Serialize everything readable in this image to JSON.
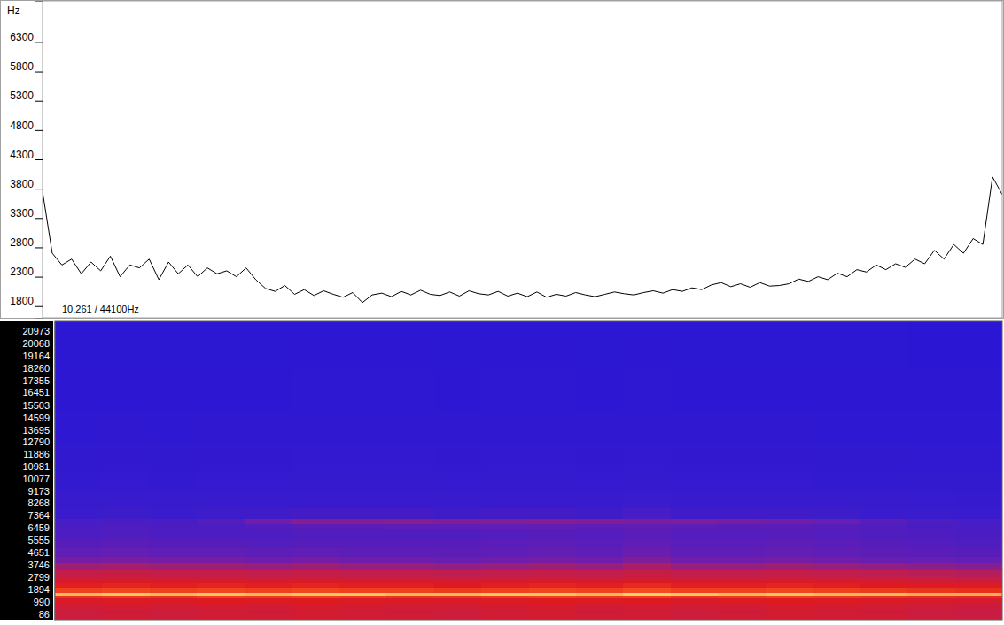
{
  "chart_data": [
    {
      "type": "line",
      "ylabel": "Hz",
      "annotation": "10.261 / 44100Hz",
      "x": [
        0,
        1,
        2,
        3,
        4,
        5,
        6,
        7,
        8,
        9,
        10,
        11,
        12,
        13,
        14,
        15,
        16,
        17,
        18,
        19,
        20,
        21,
        22,
        23,
        24,
        25,
        26,
        27,
        28,
        29,
        30,
        31,
        32,
        33,
        34,
        35,
        36,
        37,
        38,
        39,
        40,
        41,
        42,
        43,
        44,
        45,
        46,
        47,
        48,
        49,
        50,
        51,
        52,
        53,
        54,
        55,
        56,
        57,
        58,
        59,
        60,
        61,
        62,
        63,
        64,
        65,
        66,
        67,
        68,
        69,
        70,
        71,
        72,
        73,
        74,
        75,
        76,
        77,
        78,
        79,
        80,
        81,
        82,
        83,
        84,
        85,
        86,
        87,
        88,
        89,
        90,
        91,
        92,
        93,
        94,
        95,
        96,
        97,
        98,
        99
      ],
      "values": [
        3750,
        2700,
        2500,
        2600,
        2350,
        2550,
        2400,
        2650,
        2300,
        2500,
        2450,
        2600,
        2250,
        2550,
        2350,
        2500,
        2300,
        2450,
        2350,
        2400,
        2300,
        2450,
        2250,
        2100,
        2050,
        2150,
        2000,
        2080,
        1980,
        2060,
        2000,
        1950,
        2030,
        1860,
        1990,
        2020,
        1960,
        2050,
        1990,
        2070,
        2000,
        1980,
        2040,
        1970,
        2060,
        2010,
        1990,
        2050,
        1970,
        2020,
        1960,
        2040,
        1950,
        2000,
        1970,
        2030,
        1990,
        1960,
        2000,
        2040,
        2010,
        1990,
        2030,
        2060,
        2020,
        2080,
        2050,
        2110,
        2080,
        2160,
        2200,
        2130,
        2180,
        2120,
        2200,
        2140,
        2150,
        2180,
        2260,
        2220,
        2300,
        2250,
        2360,
        2300,
        2420,
        2380,
        2500,
        2420,
        2520,
        2460,
        2600,
        2520,
        2750,
        2600,
        2850,
        2700,
        2950,
        2850,
        4000,
        3700
      ],
      "color": "#000000",
      "xlim": [
        0,
        99
      ],
      "ylim": [
        1600,
        7000
      ],
      "yticks": [
        1800,
        2300,
        2800,
        3300,
        3800,
        4300,
        4800,
        5300,
        5800,
        6300
      ],
      "tick_labels": "y",
      "grid": false
    },
    {
      "type": "heatmap",
      "x_bins": [
        0,
        5,
        10,
        15,
        20,
        25,
        30,
        35,
        40,
        45,
        50,
        55,
        60,
        65,
        70,
        75,
        80,
        85,
        90,
        95,
        100
      ],
      "y_bins": [
        0,
        400,
        800,
        1200,
        1600,
        1800,
        2000,
        2400,
        2800,
        3200,
        3700,
        4200,
        4700,
        5300,
        6000,
        6700,
        7100,
        7500,
        8300,
        9500,
        11000,
        13000,
        15500,
        18500,
        22050
      ],
      "cells": [
        [
          66,
          68,
          67,
          69,
          68,
          70,
          69,
          68,
          67,
          69,
          70,
          68,
          69,
          67,
          68,
          70,
          69,
          68,
          66,
          65
        ],
        [
          64,
          66,
          65,
          67,
          66,
          68,
          67,
          66,
          65,
          67,
          68,
          66,
          67,
          65,
          66,
          68,
          67,
          66,
          64,
          63
        ],
        [
          68,
          70,
          69,
          70,
          69,
          71,
          70,
          69,
          68,
          70,
          71,
          69,
          70,
          68,
          69,
          71,
          70,
          69,
          67,
          66
        ],
        [
          72,
          73,
          72,
          74,
          73,
          74,
          73,
          72,
          72,
          73,
          74,
          73,
          74,
          72,
          73,
          74,
          73,
          72,
          71,
          70
        ],
        [
          80,
          81,
          80,
          82,
          81,
          82,
          81,
          80,
          80,
          81,
          82,
          81,
          82,
          80,
          81,
          82,
          81,
          80,
          79,
          78
        ],
        [
          96,
          97,
          96,
          97,
          96,
          97,
          97,
          96,
          96,
          97,
          97,
          96,
          98,
          97,
          96,
          97,
          96,
          96,
          95,
          95
        ],
        [
          82,
          83,
          82,
          83,
          82,
          83,
          82,
          82,
          81,
          82,
          83,
          82,
          84,
          82,
          82,
          83,
          82,
          81,
          80,
          79
        ],
        [
          76,
          77,
          76,
          77,
          76,
          77,
          76,
          76,
          75,
          76,
          77,
          76,
          78,
          76,
          76,
          77,
          76,
          75,
          74,
          73
        ],
        [
          70,
          71,
          70,
          70,
          69,
          70,
          69,
          69,
          68,
          69,
          70,
          69,
          71,
          69,
          69,
          70,
          69,
          68,
          67,
          66
        ],
        [
          62,
          63,
          62,
          62,
          61,
          62,
          61,
          61,
          60,
          61,
          62,
          61,
          63,
          61,
          61,
          62,
          61,
          60,
          59,
          58
        ],
        [
          54,
          55,
          54,
          54,
          53,
          54,
          53,
          53,
          52,
          53,
          54,
          53,
          56,
          53,
          53,
          54,
          53,
          52,
          51,
          50
        ],
        [
          47,
          48,
          47,
          47,
          46,
          47,
          46,
          46,
          45,
          46,
          47,
          46,
          49,
          46,
          46,
          47,
          46,
          45,
          44,
          43
        ],
        [
          42,
          43,
          42,
          42,
          41,
          42,
          41,
          41,
          41,
          42,
          43,
          42,
          45,
          42,
          42,
          43,
          42,
          41,
          40,
          39
        ],
        [
          39,
          40,
          39,
          39,
          38,
          39,
          39,
          39,
          39,
          40,
          41,
          40,
          42,
          40,
          40,
          41,
          40,
          39,
          38,
          37
        ],
        [
          36,
          37,
          36,
          36,
          36,
          37,
          37,
          37,
          37,
          38,
          39,
          38,
          40,
          38,
          38,
          39,
          38,
          37,
          36,
          35
        ],
        [
          35,
          36,
          35,
          36,
          38,
          40,
          40,
          41,
          41,
          42,
          42,
          41,
          42,
          41,
          40,
          40,
          39,
          37,
          35,
          34
        ],
        [
          34,
          35,
          35,
          38,
          46,
          50,
          50,
          50,
          49,
          49,
          50,
          49,
          48,
          48,
          47,
          46,
          44,
          40,
          36,
          34
        ],
        [
          30,
          31,
          30,
          31,
          32,
          33,
          33,
          33,
          32,
          33,
          33,
          32,
          34,
          32,
          32,
          32,
          31,
          30,
          29,
          28
        ],
        [
          25,
          26,
          25,
          26,
          26,
          27,
          27,
          27,
          26,
          27,
          27,
          26,
          28,
          26,
          26,
          26,
          25,
          25,
          24,
          23
        ],
        [
          19,
          20,
          19,
          20,
          20,
          21,
          21,
          21,
          20,
          21,
          21,
          20,
          22,
          20,
          20,
          20,
          19,
          19,
          18,
          18
        ],
        [
          14,
          15,
          14,
          15,
          15,
          16,
          16,
          16,
          15,
          16,
          16,
          15,
          17,
          15,
          15,
          15,
          14,
          14,
          13,
          13
        ],
        [
          10,
          11,
          10,
          11,
          11,
          12,
          12,
          12,
          11,
          12,
          12,
          11,
          12,
          11,
          11,
          11,
          10,
          10,
          9,
          9
        ],
        [
          6,
          7,
          6,
          7,
          7,
          8,
          8,
          8,
          7,
          8,
          8,
          7,
          8,
          7,
          7,
          7,
          6,
          6,
          5,
          5
        ],
        [
          3,
          4,
          3,
          4,
          4,
          5,
          5,
          5,
          4,
          5,
          5,
          4,
          5,
          4,
          4,
          4,
          3,
          3,
          2,
          2
        ]
      ],
      "zlim": [
        0,
        100
      ],
      "xlim": [
        0,
        100
      ],
      "ylim": [
        0,
        22050
      ],
      "yticks": [
        86,
        990,
        1894,
        2799,
        3746,
        4651,
        5555,
        6459,
        7364,
        8268,
        9173,
        10077,
        10981,
        11886,
        12790,
        13695,
        14599,
        15503,
        16451,
        17355,
        18260,
        19164,
        20068,
        20973
      ],
      "tick_labels": "y"
    }
  ]
}
